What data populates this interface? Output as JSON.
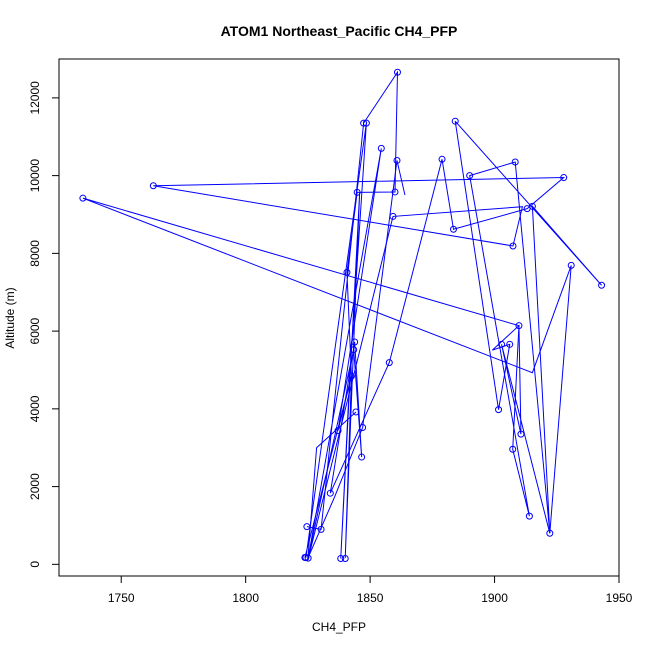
{
  "chart_data": {
    "type": "line",
    "title": "ATOM1 Northeast_Pacific CH4_PFP",
    "xlabel": "CH4_PFP",
    "ylabel": "Altitude (m)",
    "xlim": [
      1725,
      1950
    ],
    "ylim": [
      -300,
      13000
    ],
    "xticks": [
      1750,
      1800,
      1850,
      1900,
      1950
    ],
    "yticks": [
      0,
      2000,
      4000,
      6000,
      8000,
      10000,
      12000
    ],
    "marker": "open-circle",
    "series_color": "#0000ff",
    "series": [
      {
        "x": [
          1824.6,
          1830.3,
          1847.4,
          1861.0,
          1860.0,
          1844.8,
          1840.7,
          1842.5,
          1837.1,
          1854.5,
          1825.1
        ],
        "y": [
          970,
          900,
          11350,
          12660,
          9580,
          9570,
          7510,
          4840,
          3440,
          10700,
          160
        ]
      },
      {
        "x": [
          1824.2,
          1848.5,
          1841.8,
          1838.2,
          1845.8,
          1840.0,
          1842.5,
          1823.8
        ],
        "y": [
          175,
          11350,
          4800,
          150,
          9570,
          160,
          4840,
          175
        ]
      },
      {
        "x": [
          1825.0,
          1843.4,
          1846.6,
          1843.8,
          1834.0,
          1857.7,
          1878.9,
          1883.5,
          1913.1,
          1927.8,
          1762.9,
          1907.4,
          1911.2,
          1859.2,
          1825.2
        ],
        "y": [
          160,
          5520,
          2760,
          5720,
          1830,
          5190,
          10420,
          8620,
          9150,
          9950,
          9740,
          8190,
          9200,
          8950,
          160
        ]
      },
      {
        "x": [
          1844.3,
          1828.5,
          1825.0,
          1835.5,
          1847.0,
          1860.8,
          1864.0
        ],
        "y": [
          3920,
          3000,
          160,
          1700,
          3520,
          10390,
          9500
        ]
      },
      {
        "x": [
          1884.2,
          1901.6,
          1906.1,
          1899.1,
          1909.8,
          1907.3,
          1914.0,
          1890.0,
          1908.3,
          1922.2,
          1915.2,
          1943.0,
          1884.2
        ],
        "y": [
          11400,
          3980,
          5660,
          5510,
          6140,
          2960,
          1240,
          10000,
          10350,
          800,
          9210,
          7180,
          11400
        ]
      },
      {
        "x": [
          1734.6,
          1909.8,
          1910.6,
          1902.8,
          1922.2,
          1930.8,
          1915.2,
          1734.6
        ],
        "y": [
          9420,
          6140,
          3350,
          5660,
          800,
          7690,
          4930,
          9420
        ]
      }
    ],
    "points": {
      "x": [
        1824.6,
        1830.3,
        1847.4,
        1848.5,
        1861.0,
        1860.0,
        1844.8,
        1840.7,
        1842.5,
        1837.1,
        1854.5,
        1825.1,
        1824.2,
        1823.8,
        1838.2,
        1840.0,
        1843.4,
        1846.6,
        1843.8,
        1834.0,
        1857.7,
        1878.9,
        1883.5,
        1913.1,
        1927.8,
        1762.9,
        1907.4,
        1859.2,
        1844.3,
        1847.0,
        1860.8,
        1884.2,
        1901.6,
        1906.1,
        1902.8,
        1909.8,
        1907.3,
        1914.0,
        1890.0,
        1908.3,
        1922.2,
        1915.2,
        1943.0,
        1734.6,
        1910.6,
        1930.8
      ],
      "y": [
        970,
        900,
        11350,
        11350,
        12660,
        9580,
        9570,
        7510,
        4840,
        3440,
        10700,
        160,
        175,
        175,
        150,
        150,
        5520,
        2760,
        5720,
        1830,
        5190,
        10420,
        8620,
        9150,
        9950,
        9740,
        8190,
        8950,
        3920,
        3520,
        10390,
        11400,
        3980,
        5660,
        5660,
        6140,
        2960,
        1240,
        10000,
        10350,
        800,
        9210,
        7180,
        9420,
        3350,
        7690
      ]
    }
  }
}
